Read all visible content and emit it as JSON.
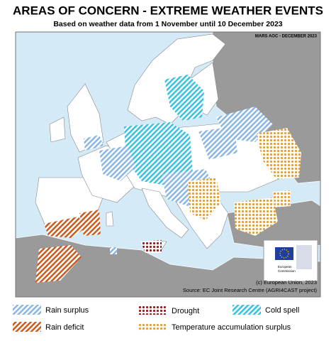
{
  "header": {
    "title": "AREAS OF CONCERN - EXTREME WEATHER EVENTS",
    "subtitle": "Based on weather data from 1 November until 10 December 2023"
  },
  "map": {
    "stamp": "MARS AOC - DECEMBER 2023",
    "copyright": "(c) European Union, 2023",
    "source": "Source: EC Joint Research Centre (AGRI4CAST project)",
    "logo_text": [
      "European",
      "Commission"
    ]
  },
  "legend": [
    {
      "label": "Rain surplus"
    },
    {
      "label": "Drought"
    },
    {
      "label": "Cold spell"
    },
    {
      "label": "Rain deficit"
    },
    {
      "label": "Temperature accumulation surplus"
    }
  ]
}
